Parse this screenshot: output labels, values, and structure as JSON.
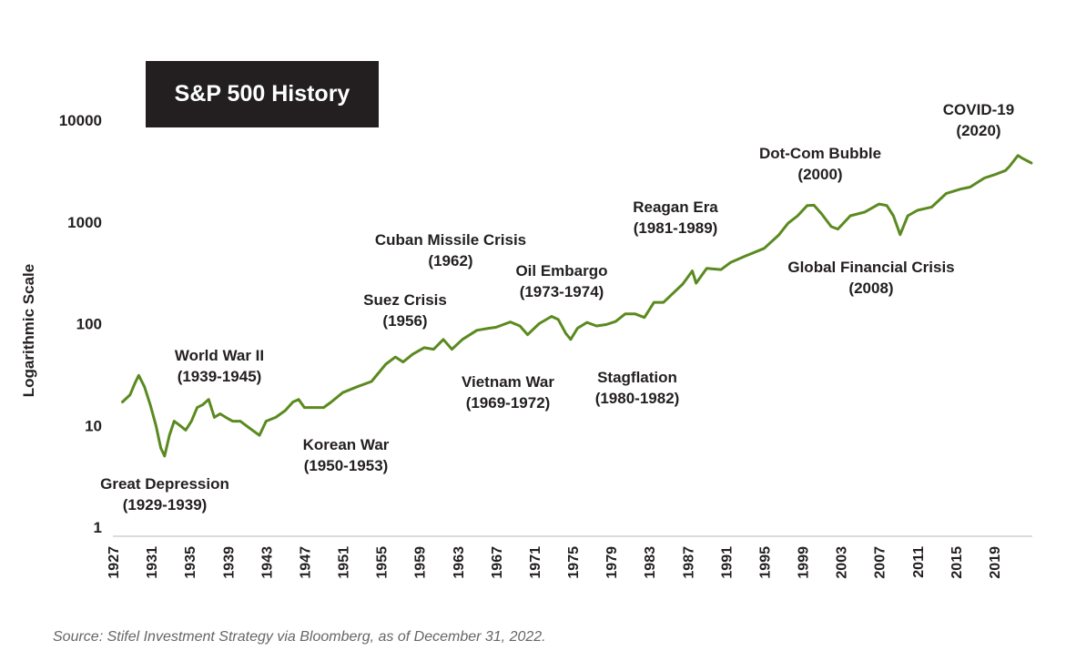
{
  "chart_data": {
    "type": "line",
    "title": "S&P 500 History",
    "ylabel": "Logarithmic Scale",
    "xlabel": "",
    "yscale": "log",
    "ylim": [
      1,
      10000
    ],
    "xlim": [
      1927,
      2023
    ],
    "yticks": [
      1,
      10,
      100,
      1000,
      10000
    ],
    "xticks": [
      1927,
      1931,
      1935,
      1939,
      1943,
      1947,
      1951,
      1955,
      1959,
      1963,
      1967,
      1971,
      1975,
      1979,
      1983,
      1987,
      1991,
      1995,
      1999,
      2003,
      2007,
      2011,
      2015,
      2019
    ],
    "grid": false,
    "legend": "none",
    "line_color": "#5a8a1f",
    "series": [
      {
        "x": [
          1928,
          1928.8,
          1929.3,
          1929.7,
          1930.3,
          1930.9,
          1931.5,
          1932.0,
          1932.4,
          1932.9,
          1933.4,
          1934.0,
          1934.6,
          1935.2,
          1935.8,
          1936.4,
          1937.0,
          1937.6,
          1938.2,
          1938.8,
          1939.5,
          1940.3,
          1941.2,
          1942.3,
          1943.0,
          1944.0,
          1945.0,
          1945.8,
          1946.4,
          1947.0,
          1948.0,
          1949.0,
          1949.8,
          1951.0,
          1952.5,
          1954.0,
          1955.5,
          1956.5,
          1957.3,
          1958.3,
          1959.5,
          1960.5,
          1961.5,
          1962.4,
          1963.5,
          1965.0,
          1966.2,
          1967.0,
          1968.5,
          1969.5,
          1970.3,
          1971.5,
          1972.8,
          1973.5,
          1974.3,
          1974.8,
          1975.5,
          1976.5,
          1977.5,
          1978.5,
          1979.5,
          1980.5,
          1981.5,
          1982.5,
          1983.5,
          1984.5,
          1985.5,
          1986.5,
          1987.5,
          1987.9,
          1989.0,
          1990.5,
          1991.5,
          1993.0,
          1995.0,
          1996.5,
          1997.5,
          1998.5,
          1999.5,
          2000.2,
          2001.0,
          2002.0,
          2002.7,
          2004.0,
          2005.5,
          2007.0,
          2007.8,
          2008.5,
          2009.2,
          2010.0,
          2011.0,
          2012.5,
          2014.0,
          2015.5,
          2016.5,
          2018.0,
          2019.0,
          2020.2,
          2020.6,
          2021.5,
          2022.0,
          2022.9
        ],
        "y": [
          17,
          20,
          26,
          31,
          24,
          16,
          10,
          6,
          5,
          8,
          11,
          10,
          9,
          11,
          15,
          16,
          18,
          12,
          13,
          12,
          11,
          11,
          9.5,
          8,
          11,
          12,
          14,
          17,
          18,
          15,
          15,
          15,
          17,
          21,
          24,
          27,
          40,
          47,
          42,
          50,
          58,
          56,
          70,
          56,
          70,
          86,
          90,
          92,
          104,
          95,
          78,
          100,
          118,
          110,
          80,
          70,
          90,
          103,
          95,
          98,
          105,
          125,
          125,
          115,
          162,
          162,
          200,
          245,
          330,
          250,
          350,
          340,
          400,
          460,
          550,
          740,
          970,
          1150,
          1450,
          1460,
          1200,
          900,
          850,
          1150,
          1250,
          1500,
          1450,
          1150,
          750,
          1150,
          1300,
          1400,
          1900,
          2100,
          2200,
          2700,
          2900,
          3200,
          3500,
          4500,
          4200,
          3800
        ]
      }
    ],
    "annotations": [
      {
        "name": "great-depression",
        "lines": [
          "Great Depression",
          "(1929-1939)"
        ]
      },
      {
        "name": "world-war-ii",
        "lines": [
          "World War II",
          "(1939-1945)"
        ]
      },
      {
        "name": "korean-war",
        "lines": [
          "Korean War",
          "(1950-1953)"
        ]
      },
      {
        "name": "suez-crisis",
        "lines": [
          "Suez Crisis",
          "(1956)"
        ]
      },
      {
        "name": "cuban-missile-crisis",
        "lines": [
          "Cuban Missile Crisis",
          "(1962)"
        ]
      },
      {
        "name": "vietnam-war",
        "lines": [
          "Vietnam War",
          "(1969-1972)"
        ]
      },
      {
        "name": "oil-embargo",
        "lines": [
          "Oil Embargo",
          "(1973-1974)"
        ]
      },
      {
        "name": "stagflation",
        "lines": [
          "Stagflation",
          "(1980-1982)"
        ]
      },
      {
        "name": "reagan-era",
        "lines": [
          "Reagan Era",
          "(1981-1989)"
        ]
      },
      {
        "name": "dot-com-bubble",
        "lines": [
          "Dot-Com Bubble",
          "(2000)"
        ]
      },
      {
        "name": "global-financial-crisis",
        "lines": [
          "Global Financial Crisis",
          "(2008)"
        ]
      },
      {
        "name": "covid-19",
        "lines": [
          "COVID-19",
          "(2020)"
        ]
      }
    ]
  },
  "source": "Source: Stifel Investment Strategy via Bloomberg, as of December 31, 2022."
}
